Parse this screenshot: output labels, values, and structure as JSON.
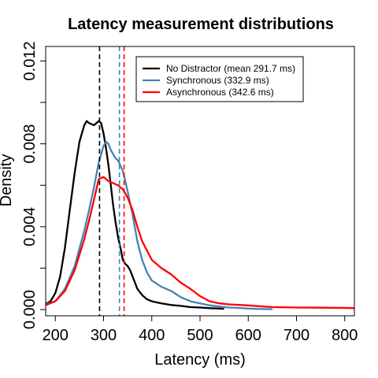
{
  "chart_data": {
    "type": "line",
    "title": "Latency measurement distributions",
    "xlabel": "Latency (ms)",
    "ylabel": "Density",
    "xlim": [
      180,
      820
    ],
    "ylim": [
      -0.0003,
      0.0127
    ],
    "xticks": [
      200,
      300,
      400,
      500,
      600,
      700,
      800
    ],
    "yticks": [
      0.0,
      0.004,
      0.008,
      0.012
    ],
    "ytick_labels": [
      "0.000",
      "0.004",
      "0.008",
      "0.012"
    ],
    "ytick_minor": [
      0.002,
      0.006,
      0.01
    ],
    "grid": false,
    "legend_position": "top-right",
    "series": [
      {
        "name": "No Distractor (mean 291.7 ms)",
        "color": "#000000",
        "mean": 291.7,
        "x": [
          178,
          190,
          200,
          210,
          220,
          230,
          240,
          250,
          260,
          265,
          270,
          280,
          290,
          295,
          300,
          305,
          310,
          315,
          320,
          325,
          330,
          335,
          340,
          345,
          350,
          355,
          360,
          370,
          380,
          390,
          400,
          420,
          440,
          460,
          480,
          500,
          520,
          540,
          550
        ],
        "y": [
          0.00025,
          0.0004,
          0.0008,
          0.0016,
          0.003,
          0.0048,
          0.0066,
          0.0081,
          0.0089,
          0.0091,
          0.009,
          0.0089,
          0.0091,
          0.009,
          0.0085,
          0.0078,
          0.007,
          0.006,
          0.005,
          0.0042,
          0.0035,
          0.003,
          0.0024,
          0.0022,
          0.0021,
          0.0019,
          0.0016,
          0.001,
          0.0007,
          0.0005,
          0.0004,
          0.0003,
          0.00022,
          0.00018,
          0.00012,
          0.0001,
          7e-05,
          5e-05,
          4e-05
        ]
      },
      {
        "name": "Synchronous (332.9 ms)",
        "color": "#4682b4",
        "mean": 332.9,
        "x": [
          178,
          200,
          220,
          240,
          260,
          270,
          280,
          290,
          300,
          305,
          310,
          315,
          320,
          325,
          330,
          340,
          350,
          360,
          370,
          380,
          390,
          400,
          420,
          440,
          460,
          480,
          500,
          520,
          540,
          560,
          580,
          600,
          620,
          650
        ],
        "y": [
          0.00025,
          0.0004,
          0.001,
          0.0021,
          0.0038,
          0.0048,
          0.0059,
          0.0071,
          0.0079,
          0.0081,
          0.008,
          0.0077,
          0.0075,
          0.0073,
          0.0072,
          0.0067,
          0.0057,
          0.0046,
          0.0033,
          0.0024,
          0.0018,
          0.0014,
          0.0011,
          0.0009,
          0.0006,
          0.0004,
          0.0003,
          0.0002,
          0.00015,
          0.0001,
          8e-05,
          5e-05,
          3e-05,
          2e-05
        ]
      },
      {
        "name": "Asynchronous (342.6 ms)",
        "color": "#ff0000",
        "mean": 342.6,
        "x": [
          178,
          200,
          220,
          240,
          260,
          270,
          280,
          290,
          300,
          310,
          320,
          330,
          340,
          350,
          360,
          370,
          380,
          400,
          420,
          440,
          460,
          480,
          500,
          520,
          540,
          560,
          600,
          650,
          700,
          750,
          800,
          820
        ],
        "y": [
          0.0002,
          0.0004,
          0.0009,
          0.0019,
          0.0034,
          0.0043,
          0.0053,
          0.0063,
          0.0064,
          0.0062,
          0.0061,
          0.006,
          0.0058,
          0.0054,
          0.0048,
          0.004,
          0.0033,
          0.0024,
          0.002,
          0.0017,
          0.0013,
          0.001,
          0.00065,
          0.0004,
          0.0003,
          0.00025,
          0.0002,
          0.00012,
          0.0001,
          9e-05,
          8e-05,
          7e-05
        ]
      }
    ]
  }
}
